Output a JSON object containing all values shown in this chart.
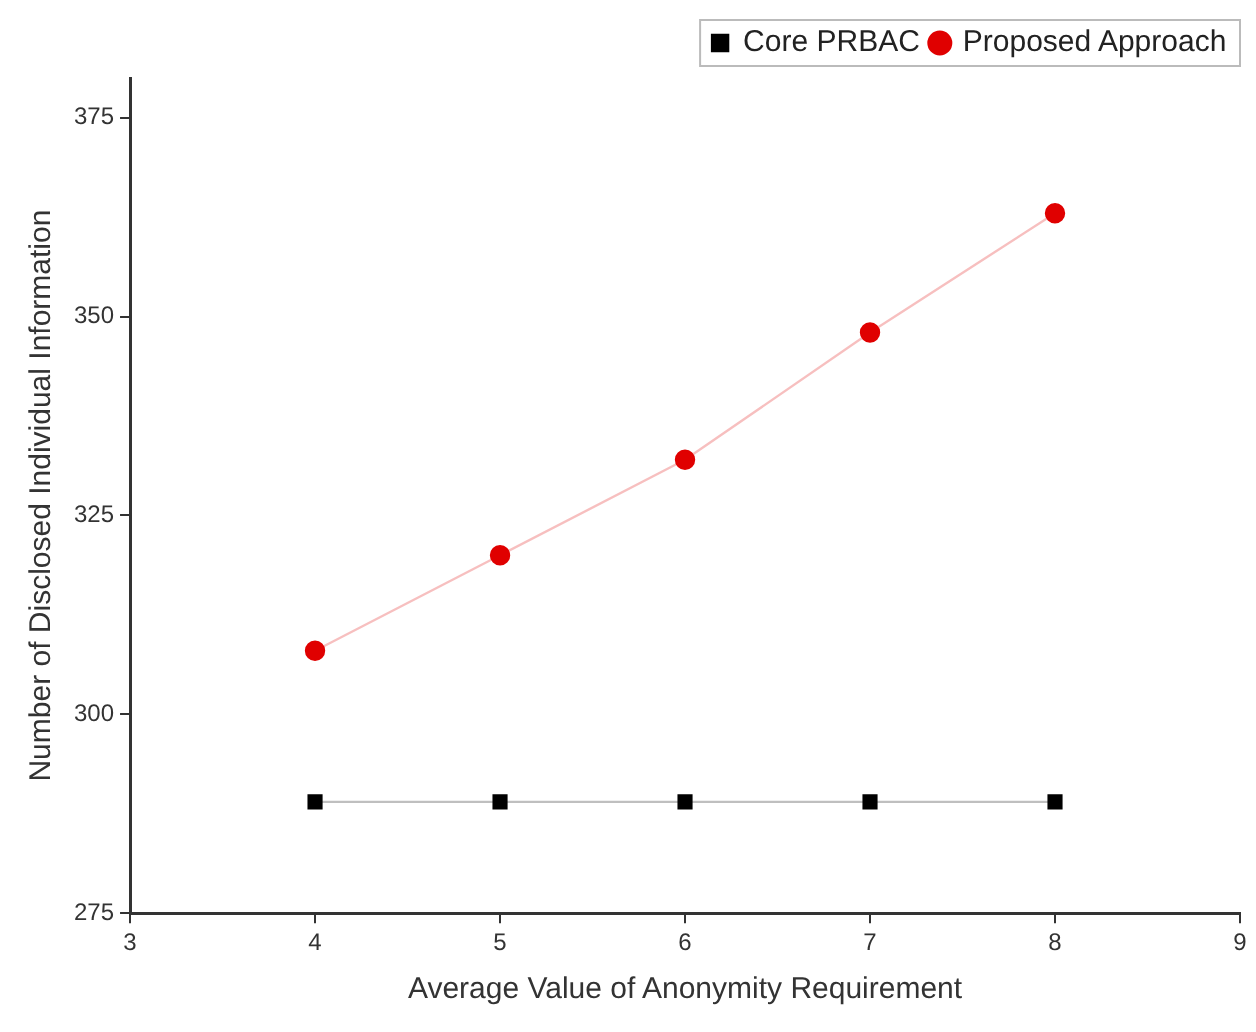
{
  "chart_data": {
    "type": "line",
    "xlabel": "Average Value of Anonymity Requirement",
    "ylabel": "Number of Disclosed Individual Information",
    "x": [
      4,
      5,
      6,
      7,
      8
    ],
    "series": [
      {
        "name": "Core PRBAC",
        "color": "#000000",
        "marker": "square",
        "values": [
          289,
          289,
          289,
          289,
          289
        ]
      },
      {
        "name": "Proposed Approach",
        "color": "#e00000",
        "marker": "circle",
        "values": [
          308,
          320,
          332,
          348,
          363
        ]
      }
    ],
    "xlim": [
      3,
      9
    ],
    "xticks": [
      3,
      4,
      5,
      6,
      7,
      8,
      9
    ],
    "ylim": [
      275,
      380
    ],
    "yticks": [
      275,
      300,
      325,
      350,
      375
    ],
    "grid": false,
    "legend": "top right",
    "line_style": "solid"
  }
}
